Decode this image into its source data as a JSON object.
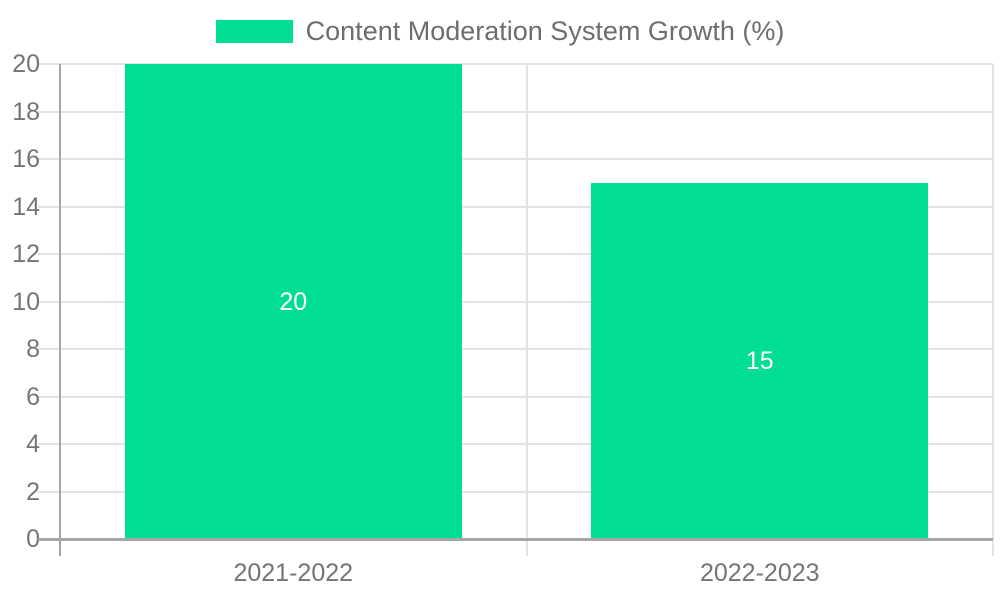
{
  "chart_data": {
    "type": "bar",
    "title": "",
    "categories": [
      "2021-2022",
      "2022-2023"
    ],
    "series": [
      {
        "name": "Content Moderation System Growth (%)",
        "values": [
          20,
          15
        ]
      }
    ],
    "bar_value_labels": [
      "20",
      "15"
    ],
    "xlabel": "",
    "ylabel": "",
    "ylim": [
      0,
      20
    ],
    "ytick_step": 2,
    "yticks": [
      0,
      2,
      4,
      6,
      8,
      10,
      12,
      14,
      16,
      18,
      20
    ],
    "grid": true,
    "legend_position": "top-center",
    "colors": {
      "bar": "#00de94",
      "grid": "#e3e3e3",
      "axis": "#a6a6a6",
      "tick_text": "#757575",
      "legend_text": "#6e6e6e",
      "bar_label_text": "#ffffff",
      "background": "#ffffff"
    }
  }
}
